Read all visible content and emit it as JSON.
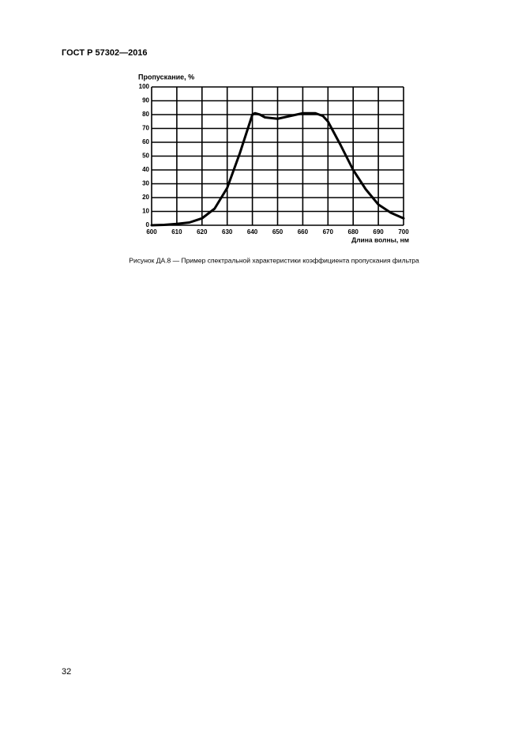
{
  "header": {
    "title": "ГОСТ Р 57302—2016"
  },
  "chart_data": {
    "type": "line",
    "y_label": "Пропускание, %",
    "x_label": "Длина волны, нм",
    "x": [
      600,
      605,
      610,
      615,
      620,
      625,
      630,
      635,
      640,
      641,
      643,
      645,
      650,
      655,
      660,
      665,
      668,
      670,
      675,
      680,
      685,
      690,
      695,
      700
    ],
    "series": [
      {
        "name": "Пропускание",
        "color": "#000000",
        "values": [
          0,
          0.3,
          1,
          2,
          5,
          12,
          27,
          52,
          80,
          81,
          80,
          78,
          77,
          79,
          81,
          81,
          79,
          75,
          58,
          40,
          26,
          15,
          9,
          5
        ]
      }
    ],
    "xlim": [
      600,
      700
    ],
    "xticks": [
      600,
      610,
      620,
      630,
      640,
      650,
      660,
      670,
      680,
      690,
      700
    ],
    "ylim": [
      0,
      100
    ],
    "yticks": [
      0,
      10,
      20,
      30,
      40,
      50,
      60,
      70,
      80,
      90,
      100
    ],
    "grid": true
  },
  "caption": "Рисунок ДА.8 — Пример спектральной характеристики коэффициента пропускания фильтра",
  "page_number": "32"
}
